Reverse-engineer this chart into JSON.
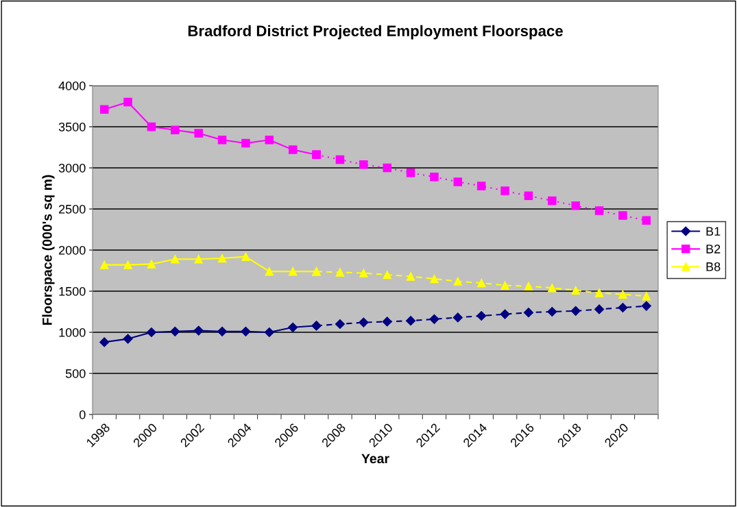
{
  "chart_data": {
    "type": "line",
    "title": "Bradford District Projected Employment Floorspace",
    "xlabel": "Year",
    "ylabel": "Floorspace (000's sq m)",
    "categories": [
      "1998",
      null,
      "2000",
      null,
      "2002",
      null,
      "2004",
      null,
      "2006",
      null,
      "2008",
      null,
      "2010",
      null,
      "2012",
      null,
      "2014",
      null,
      "2016",
      null,
      "2018",
      null,
      "2020",
      null
    ],
    "series": [
      {
        "name": "B1",
        "color": "#000080",
        "marker": "diamond",
        "line_style": "solid",
        "values": [
          880,
          920,
          1000,
          1010,
          1020,
          1010,
          1010,
          1000,
          1060,
          1080,
          null,
          null,
          null,
          null,
          null,
          null,
          null,
          null,
          null,
          null,
          null,
          null,
          null,
          null
        ]
      },
      {
        "name": "B2",
        "color": "#ff00ff",
        "marker": "square",
        "line_style": "solid",
        "values": [
          3710,
          3800,
          3500,
          3460,
          3420,
          3340,
          3300,
          3340,
          3220,
          3160,
          null,
          null,
          null,
          null,
          null,
          null,
          null,
          null,
          null,
          null,
          null,
          null,
          null,
          null
        ]
      },
      {
        "name": "B8",
        "color": "#ffff00",
        "marker": "triangle",
        "line_style": "solid",
        "values": [
          1820,
          1820,
          1830,
          1890,
          1890,
          1900,
          1920,
          1740,
          1740,
          1740,
          null,
          null,
          null,
          null,
          null,
          null,
          null,
          null,
          null,
          null,
          null,
          null,
          null,
          null
        ]
      },
      {
        "color": "#000080",
        "marker": "diamond",
        "line_style": "dashed",
        "values": [
          null,
          null,
          null,
          null,
          null,
          null,
          null,
          null,
          null,
          1080,
          1100,
          1120,
          1130,
          1140,
          1160,
          1180,
          1200,
          1220,
          1240,
          1250,
          1260,
          1280,
          1300,
          1320
        ]
      },
      {
        "color": "#ff00ff",
        "marker": "square",
        "line_style": "dotted",
        "values": [
          null,
          null,
          null,
          null,
          null,
          null,
          null,
          null,
          null,
          3160,
          3100,
          3040,
          3000,
          2940,
          2890,
          2830,
          2780,
          2720,
          2660,
          2600,
          2540,
          2480,
          2420,
          2360
        ]
      },
      {
        "color": "#ffff00",
        "marker": "triangle",
        "line_style": "dashed",
        "values": [
          null,
          null,
          null,
          null,
          null,
          null,
          null,
          null,
          null,
          1740,
          1730,
          1720,
          1700,
          1680,
          1650,
          1620,
          1600,
          1570,
          1560,
          1540,
          1510,
          1480,
          1460,
          1440
        ]
      }
    ],
    "ylim": [
      0,
      4000
    ],
    "yticks": [
      0,
      500,
      1000,
      1500,
      2000,
      2500,
      3000,
      3500,
      4000
    ],
    "grid": "y",
    "legend": "right"
  }
}
